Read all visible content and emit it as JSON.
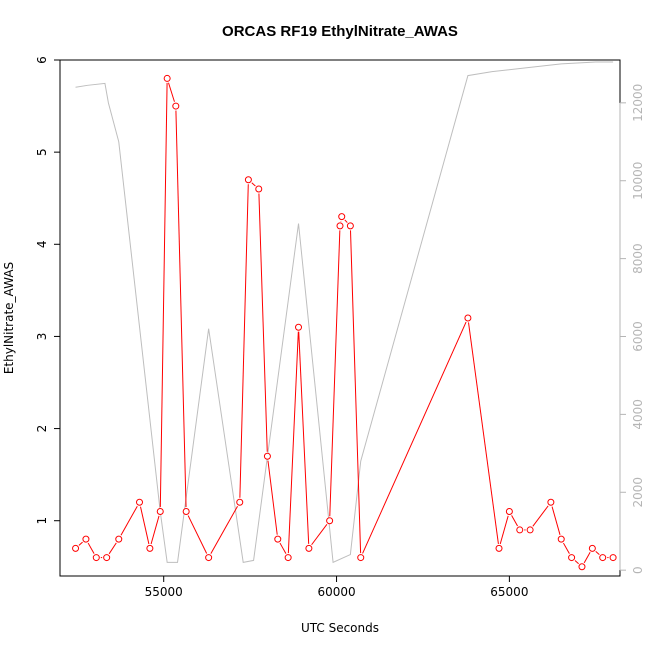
{
  "chart_data": {
    "type": "line",
    "title": "ORCAS RF19 EthylNitrate_AWAS",
    "xlabel": "UTC Seconds",
    "ylabel": "EthylNitrate_AWAS",
    "xlim": [
      52000,
      68200
    ],
    "ylim": [
      0.4,
      6.0
    ],
    "y2lim": [
      -150,
      13100
    ],
    "x_ticks": [
      55000,
      60000,
      65000
    ],
    "x_tick_labels": [
      "55000",
      "60000",
      "65000"
    ],
    "y_ticks": [
      1,
      2,
      3,
      4,
      5,
      6
    ],
    "y_tick_labels": [
      "1",
      "2",
      "3",
      "4",
      "5",
      "6"
    ],
    "y2_ticks": [
      0,
      2000,
      4000,
      6000,
      8000,
      10000,
      12000
    ],
    "y2_tick_labels": [
      "0",
      "2000",
      "4000",
      "6000",
      "8000",
      "10000",
      "12000"
    ],
    "series": [
      {
        "color": "#ff0000",
        "axis": "left",
        "markers": true,
        "x": [
          52450,
          52750,
          53050,
          53350,
          53700,
          54300,
          54600,
          54900,
          55100,
          55350,
          55650,
          56300,
          57200,
          57450,
          57750,
          58000,
          58300,
          58600,
          58900,
          59200,
          59800,
          60100,
          60150,
          60400,
          60700,
          63800,
          64700,
          65000,
          65300,
          65600,
          66200,
          66500,
          66800,
          67100,
          67400,
          67700,
          68000
        ],
        "y": [
          0.7,
          0.8,
          0.6,
          0.6,
          0.8,
          1.2,
          0.7,
          1.1,
          5.8,
          5.5,
          1.1,
          0.6,
          1.2,
          4.7,
          4.6,
          1.7,
          0.8,
          0.6,
          3.1,
          0.7,
          1.0,
          4.2,
          4.3,
          4.2,
          0.6,
          3.2,
          0.7,
          1.1,
          0.9,
          0.9,
          1.2,
          0.8,
          0.6,
          0.5,
          0.7,
          0.6,
          0.6
        ]
      },
      {
        "color": "#bebebe",
        "axis": "right",
        "markers": false,
        "x": [
          52450,
          52800,
          53300,
          53400,
          53700,
          54900,
          55100,
          55400,
          56300,
          57300,
          57600,
          58900,
          59900,
          60400,
          60700,
          63800,
          64500,
          65500,
          66500,
          67500,
          68000
        ],
        "y": [
          12400,
          12450,
          12500,
          12000,
          11000,
          1500,
          200,
          200,
          6200,
          200,
          250,
          8900,
          200,
          400,
          2800,
          12700,
          12800,
          12900,
          13000,
          13050,
          13050
        ]
      }
    ]
  }
}
